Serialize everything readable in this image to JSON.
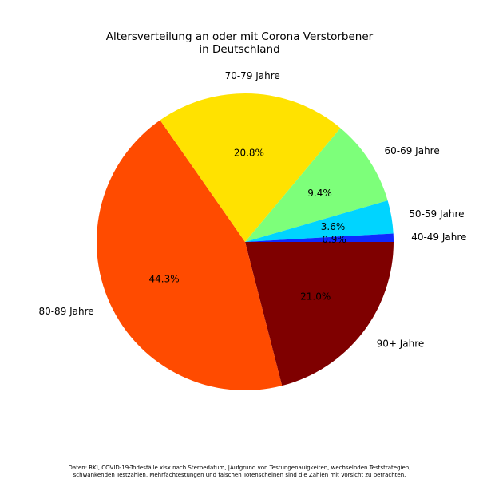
{
  "chart_data": {
    "type": "pie",
    "title_lines": [
      "Altersverteilung an oder mit Corona Verstorbener",
      "in Deutschland"
    ],
    "slices": [
      {
        "label": "90+ Jahre",
        "value": 21.0,
        "pct_label": "21.0%",
        "color": "#7f0000"
      },
      {
        "label": "80-89 Jahre",
        "value": 44.3,
        "pct_label": "44.3%",
        "color": "#ff4b00"
      },
      {
        "label": "70-79 Jahre",
        "value": 20.8,
        "pct_label": "20.8%",
        "color": "#ffe200"
      },
      {
        "label": "60-69 Jahre",
        "value": 9.4,
        "pct_label": "9.4%",
        "color": "#7dff7a"
      },
      {
        "label": "50-59 Jahre",
        "value": 3.6,
        "pct_label": "3.6%",
        "color": "#00d4ff"
      },
      {
        "label": "40-49 Jahre",
        "value": 0.9,
        "pct_label": "0.9%",
        "color": "#0f28ff"
      }
    ],
    "footnote_lines": [
      "Daten: RKI, COVID-19-Todesfälle.xlsx nach Sterbedatum, |Aufgrund von Testungenauigkeiten, wechselnden Teststrategien,",
      "schwankenden Testzahlen, Mehrfachtestungen und falschen Totenscheinen sind die Zahlen mit Vorsicht zu betrachten."
    ]
  }
}
